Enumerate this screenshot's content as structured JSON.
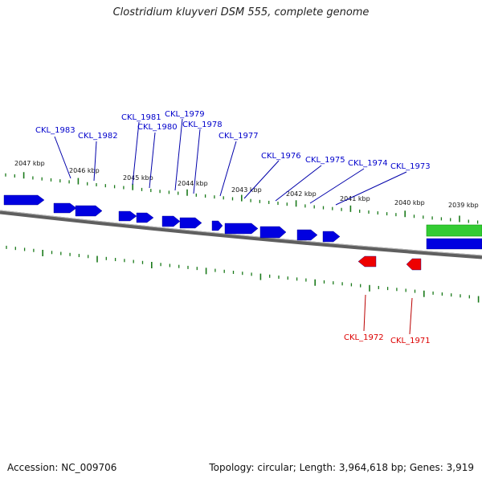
{
  "title": "Clostridium kluyveri DSM 555, complete genome",
  "accession": "Accession: NC_009706",
  "summary": "Topology: circular; Length: 3,964,618 bp; Genes: 3,919",
  "colors": {
    "forward_gene": "#0000e0",
    "reverse_gene": "#ee0000",
    "forward_label": "#0000cc",
    "reverse_label": "#dd0000",
    "backbone": "#777777",
    "tick": "#1a7a1a",
    "rna_feature": "#33cc33"
  },
  "scale_labels": [
    "2047 kbp",
    "2046 kbp",
    "2045 kbp",
    "2044 kbp",
    "2043 kbp",
    "2042 kbp",
    "2041 kbp",
    "2040 kbp",
    "2039 kbp"
  ],
  "forward_gene_labels": [
    "CKL_1983",
    "CKL_1982",
    "CKL_1981",
    "CKL_1980",
    "CKL_1979",
    "CKL_1978",
    "CKL_1977",
    "CKL_1976",
    "CKL_1975",
    "CKL_1974",
    "CKL_1973"
  ],
  "reverse_gene_labels": [
    "CKL_1972",
    "CKL_1971"
  ]
}
